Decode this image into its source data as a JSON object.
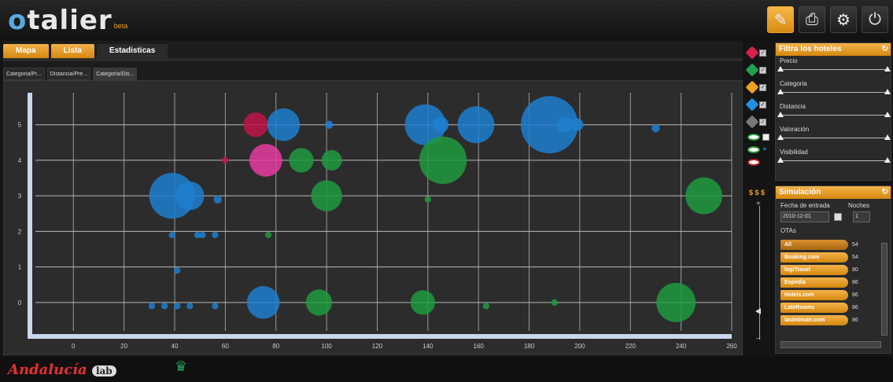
{
  "header": {
    "logo_prefix": "o",
    "logo_rest": "talier",
    "logo_badge": "beta",
    "buttons": [
      {
        "icon": "bookmark-icon",
        "glyph": "✎",
        "active": true
      },
      {
        "icon": "print-icon",
        "glyph": "⎙",
        "active": false
      },
      {
        "icon": "gear-icon",
        "glyph": "⚙",
        "active": false
      },
      {
        "icon": "logout-icon",
        "glyph": "⏻",
        "active": false
      }
    ]
  },
  "tabs": [
    {
      "label": "Mapa",
      "active": false
    },
    {
      "label": "Lista",
      "active": false
    },
    {
      "label": "Estadisticas",
      "active": true
    }
  ],
  "subtabs": [
    {
      "label": "Categoria/Pr...",
      "active": false
    },
    {
      "label": "Distancia/Pre...",
      "active": false
    },
    {
      "label": "Categoria/Dis...",
      "active": true
    }
  ],
  "chart_data": {
    "type": "scatter",
    "title": "",
    "xlabel": "",
    "ylabel": "",
    "xlim": [
      -15,
      260
    ],
    "ylim": [
      -0.8,
      5.9
    ],
    "xticks": [
      0,
      20,
      40,
      60,
      80,
      100,
      120,
      140,
      160,
      180,
      200,
      220,
      240,
      260
    ],
    "yticks": [
      0,
      1,
      2,
      3,
      4,
      5
    ],
    "points": [
      {
        "x": 72,
        "y": 5,
        "r": 3,
        "color": "#c0154a"
      },
      {
        "x": 83,
        "y": 5,
        "r": 4,
        "color": "#1e7fd0"
      },
      {
        "x": 101,
        "y": 5,
        "r": 1,
        "color": "#1e7fd0"
      },
      {
        "x": 139,
        "y": 5,
        "r": 5,
        "color": "#1e7fd0"
      },
      {
        "x": 145,
        "y": 5,
        "r": 2,
        "color": "#1e7fd0"
      },
      {
        "x": 159,
        "y": 5,
        "r": 4.5,
        "color": "#1e7fd0"
      },
      {
        "x": 188,
        "y": 5,
        "r": 7,
        "color": "#1e7fd0"
      },
      {
        "x": 194,
        "y": 5,
        "r": 2,
        "color": "#1e7fd0"
      },
      {
        "x": 199,
        "y": 5,
        "r": 1.5,
        "color": "#1e7fd0"
      },
      {
        "x": 230,
        "y": 4.9,
        "r": 1,
        "color": "#1e7fd0"
      },
      {
        "x": 60,
        "y": 4,
        "r": 0.8,
        "color": "#c0154a"
      },
      {
        "x": 76,
        "y": 4,
        "r": 4,
        "color": "#e83ca0"
      },
      {
        "x": 90,
        "y": 4,
        "r": 3,
        "color": "#1e9a40"
      },
      {
        "x": 102,
        "y": 4,
        "r": 2.5,
        "color": "#1e9a40"
      },
      {
        "x": 146,
        "y": 4,
        "r": 5.8,
        "color": "#1e9a40"
      },
      {
        "x": 39,
        "y": 3,
        "r": 5.6,
        "color": "#1e7fd0"
      },
      {
        "x": 46,
        "y": 3,
        "r": 3.5,
        "color": "#1e7fd0"
      },
      {
        "x": 57,
        "y": 2.9,
        "r": 1,
        "color": "#1e7fd0"
      },
      {
        "x": 100,
        "y": 3,
        "r": 3.8,
        "color": "#1e9a40"
      },
      {
        "x": 140,
        "y": 2.9,
        "r": 0.8,
        "color": "#1e9a40"
      },
      {
        "x": 249,
        "y": 3,
        "r": 4.5,
        "color": "#1e9a40"
      },
      {
        "x": 39,
        "y": 1.9,
        "r": 0.8,
        "color": "#1e7fd0"
      },
      {
        "x": 49,
        "y": 1.9,
        "r": 0.8,
        "color": "#1e7fd0"
      },
      {
        "x": 51,
        "y": 1.9,
        "r": 0.8,
        "color": "#1e7fd0"
      },
      {
        "x": 56,
        "y": 1.9,
        "r": 0.8,
        "color": "#1e7fd0"
      },
      {
        "x": 77,
        "y": 1.9,
        "r": 0.8,
        "color": "#1e9a40"
      },
      {
        "x": 41,
        "y": 0.9,
        "r": 0.8,
        "color": "#1e7fd0"
      },
      {
        "x": 31,
        "y": -0.1,
        "r": 0.8,
        "color": "#1e7fd0"
      },
      {
        "x": 36,
        "y": -0.1,
        "r": 0.8,
        "color": "#1e7fd0"
      },
      {
        "x": 41,
        "y": -0.1,
        "r": 0.8,
        "color": "#1e7fd0"
      },
      {
        "x": 46,
        "y": -0.1,
        "r": 0.8,
        "color": "#1e7fd0"
      },
      {
        "x": 56,
        "y": -0.1,
        "r": 0.8,
        "color": "#1e7fd0"
      },
      {
        "x": 75,
        "y": 0,
        "r": 4,
        "color": "#1e7fd0"
      },
      {
        "x": 97,
        "y": 0,
        "r": 3.2,
        "color": "#1e9a40"
      },
      {
        "x": 138,
        "y": 0,
        "r": 3,
        "color": "#1e9a40"
      },
      {
        "x": 163,
        "y": -0.1,
        "r": 0.8,
        "color": "#1e9a40"
      },
      {
        "x": 190,
        "y": 0,
        "r": 0.8,
        "color": "#1e9a40"
      },
      {
        "x": 238,
        "y": 0,
        "r": 4.8,
        "color": "#1e9a40"
      }
    ]
  },
  "legend_icons": [
    {
      "icon": "cube-red-icon",
      "color": "#d8204a"
    },
    {
      "icon": "cube-green-icon",
      "color": "#20a050"
    },
    {
      "icon": "cube-orange-icon",
      "color": "#f0a020"
    },
    {
      "icon": "cube-blue-icon",
      "color": "#2090e0"
    },
    {
      "icon": "cube-gray-icon",
      "color": "#777777"
    }
  ],
  "filters": {
    "title": "Filtra los hoteles",
    "items": [
      {
        "label": "Precio"
      },
      {
        "label": "Categoria"
      },
      {
        "label": "Distancia"
      },
      {
        "label": "Valoración"
      },
      {
        "label": "Visibilidad"
      }
    ]
  },
  "price_col": {
    "label": "$ $ $"
  },
  "simulation": {
    "title": "Simulación",
    "date_label": "Fecha de entrada",
    "nights_label": "Noches",
    "date_value": "2010-12-01",
    "nights_value": "1",
    "otas_label": "OTAs",
    "otas": [
      {
        "name": "All",
        "count": "54"
      },
      {
        "name": "Booking.com",
        "count": "54"
      },
      {
        "name": "logiTravel",
        "count": "80"
      },
      {
        "name": "Expedia",
        "count": "86"
      },
      {
        "name": "Hotels.com",
        "count": "86"
      },
      {
        "name": "LateRooms",
        "count": "86"
      },
      {
        "name": "lastminute.com",
        "count": "86"
      }
    ]
  },
  "footer": {
    "brand": "Andalucía",
    "brand_suffix": "lab"
  }
}
